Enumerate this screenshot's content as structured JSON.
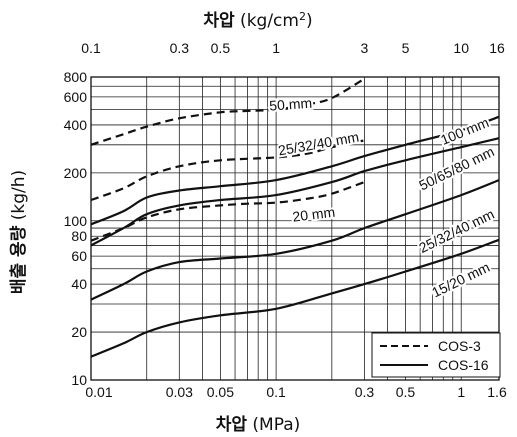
{
  "chart_data": {
    "type": "line",
    "top_axis_title": {
      "bold": "차압",
      "rest": " (kg/cm",
      "sup": "2",
      "close": ")"
    },
    "xlabel": {
      "bold": "차압",
      "rest": " (MPa)"
    },
    "ylabel": {
      "bold": "배출 용량",
      "rest": " (kg/h)"
    },
    "x_scale": "log",
    "y_scale": "log",
    "xlim": [
      0.01,
      1.6
    ],
    "ylim": [
      10,
      800
    ],
    "x_ticks": [
      {
        "value": 0.01,
        "label": "0.01"
      },
      {
        "value": 0.03,
        "label": "0.03"
      },
      {
        "value": 0.05,
        "label": "0.05"
      },
      {
        "value": 0.1,
        "label": "0.1"
      },
      {
        "value": 0.3,
        "label": "0.3"
      },
      {
        "value": 0.5,
        "label": "0.5"
      },
      {
        "value": 1,
        "label": "1"
      },
      {
        "value": 1.6,
        "label": "1.6"
      }
    ],
    "top_ticks": [
      {
        "value": 0.01,
        "label": "0.1"
      },
      {
        "value": 0.03,
        "label": "0.3"
      },
      {
        "value": 0.05,
        "label": "0.5"
      },
      {
        "value": 0.1,
        "label": "1"
      },
      {
        "value": 0.3,
        "label": "3"
      },
      {
        "value": 0.5,
        "label": "5"
      },
      {
        "value": 1,
        "label": "10"
      },
      {
        "value": 1.6,
        "label": "16"
      }
    ],
    "y_ticks": [
      {
        "value": 10,
        "label": "10"
      },
      {
        "value": 20,
        "label": "20"
      },
      {
        "value": 40,
        "label": "40"
      },
      {
        "value": 60,
        "label": "60"
      },
      {
        "value": 80,
        "label": "80"
      },
      {
        "value": 100,
        "label": "100"
      },
      {
        "value": 200,
        "label": "200"
      },
      {
        "value": 400,
        "label": "400"
      },
      {
        "value": 600,
        "label": "600"
      },
      {
        "value": 800,
        "label": "800"
      }
    ],
    "grid_x": [
      0.01,
      0.02,
      0.03,
      0.04,
      0.05,
      0.06,
      0.07,
      0.08,
      0.09,
      0.1,
      0.2,
      0.3,
      0.4,
      0.5,
      0.6,
      0.7,
      0.8,
      0.9,
      1,
      1.6
    ],
    "grid_y": [
      10,
      20,
      30,
      40,
      50,
      60,
      70,
      80,
      90,
      100,
      200,
      300,
      400,
      500,
      600,
      700,
      800
    ],
    "grid": true,
    "legend_position": "bottom-right",
    "legend": [
      {
        "label": "COS-3",
        "style": "dashed"
      },
      {
        "label": "COS-16",
        "style": "solid"
      }
    ],
    "series": [
      {
        "name": "50 mm",
        "model": "COS-3",
        "style": "dashed",
        "label_at": {
          "x": 0.12,
          "y": 530,
          "rotate": -4
        },
        "points": [
          [
            0.01,
            300
          ],
          [
            0.015,
            350
          ],
          [
            0.02,
            390
          ],
          [
            0.03,
            440
          ],
          [
            0.05,
            480
          ],
          [
            0.07,
            490
          ],
          [
            0.1,
            500
          ],
          [
            0.15,
            540
          ],
          [
            0.2,
            590
          ],
          [
            0.3,
            780
          ]
        ]
      },
      {
        "name": "25/32/40 mm",
        "model": "COS-3",
        "style": "dashed",
        "label_at": {
          "x": 0.17,
          "y": 300,
          "rotate": -10
        },
        "points": [
          [
            0.01,
            135
          ],
          [
            0.015,
            160
          ],
          [
            0.02,
            190
          ],
          [
            0.03,
            220
          ],
          [
            0.05,
            240
          ],
          [
            0.1,
            250
          ],
          [
            0.15,
            265
          ],
          [
            0.2,
            290
          ],
          [
            0.3,
            320
          ]
        ]
      },
      {
        "name": "20 mm",
        "model": "COS-3",
        "style": "dashed",
        "label_at": {
          "x": 0.16,
          "y": 108,
          "rotate": -7
        },
        "points": [
          [
            0.01,
            75
          ],
          [
            0.015,
            90
          ],
          [
            0.02,
            105
          ],
          [
            0.03,
            118
          ],
          [
            0.05,
            125
          ],
          [
            0.07,
            128
          ],
          [
            0.1,
            130
          ],
          [
            0.15,
            138
          ],
          [
            0.2,
            148
          ],
          [
            0.3,
            175
          ]
        ]
      },
      {
        "name": "100 mm",
        "model": "COS-16",
        "style": "solid",
        "label_at": {
          "x": 1.05,
          "y": 360,
          "rotate": -22
        },
        "points": [
          [
            0.01,
            95
          ],
          [
            0.015,
            115
          ],
          [
            0.02,
            140
          ],
          [
            0.03,
            155
          ],
          [
            0.05,
            165
          ],
          [
            0.1,
            180
          ],
          [
            0.2,
            220
          ],
          [
            0.3,
            255
          ],
          [
            0.5,
            300
          ],
          [
            1,
            370
          ],
          [
            1.6,
            450
          ]
        ]
      },
      {
        "name": "50/65/80 mm",
        "model": "COS-16",
        "style": "solid",
        "label_at": {
          "x": 0.95,
          "y": 210,
          "rotate": -26
        },
        "points": [
          [
            0.01,
            70
          ],
          [
            0.015,
            90
          ],
          [
            0.02,
            110
          ],
          [
            0.03,
            125
          ],
          [
            0.05,
            135
          ],
          [
            0.1,
            145
          ],
          [
            0.2,
            175
          ],
          [
            0.3,
            205
          ],
          [
            0.5,
            240
          ],
          [
            1,
            290
          ],
          [
            1.6,
            330
          ]
        ]
      },
      {
        "name": "25/32/40 mm",
        "model": "COS-16",
        "style": "solid",
        "label_at": {
          "x": 0.95,
          "y": 85,
          "rotate": -26
        },
        "points": [
          [
            0.01,
            32
          ],
          [
            0.015,
            40
          ],
          [
            0.02,
            48
          ],
          [
            0.03,
            55
          ],
          [
            0.05,
            58
          ],
          [
            0.1,
            62
          ],
          [
            0.2,
            75
          ],
          [
            0.3,
            90
          ],
          [
            0.5,
            110
          ],
          [
            1,
            145
          ],
          [
            1.6,
            180
          ]
        ]
      },
      {
        "name": "15/20 mm",
        "model": "COS-16",
        "style": "solid",
        "label_at": {
          "x": 1.0,
          "y": 42,
          "rotate": -26
        },
        "points": [
          [
            0.01,
            14
          ],
          [
            0.015,
            17
          ],
          [
            0.02,
            20
          ],
          [
            0.03,
            23
          ],
          [
            0.05,
            25.5
          ],
          [
            0.1,
            28
          ],
          [
            0.2,
            35
          ],
          [
            0.3,
            40
          ],
          [
            0.5,
            48
          ],
          [
            1,
            62
          ],
          [
            1.6,
            76
          ]
        ]
      }
    ]
  }
}
